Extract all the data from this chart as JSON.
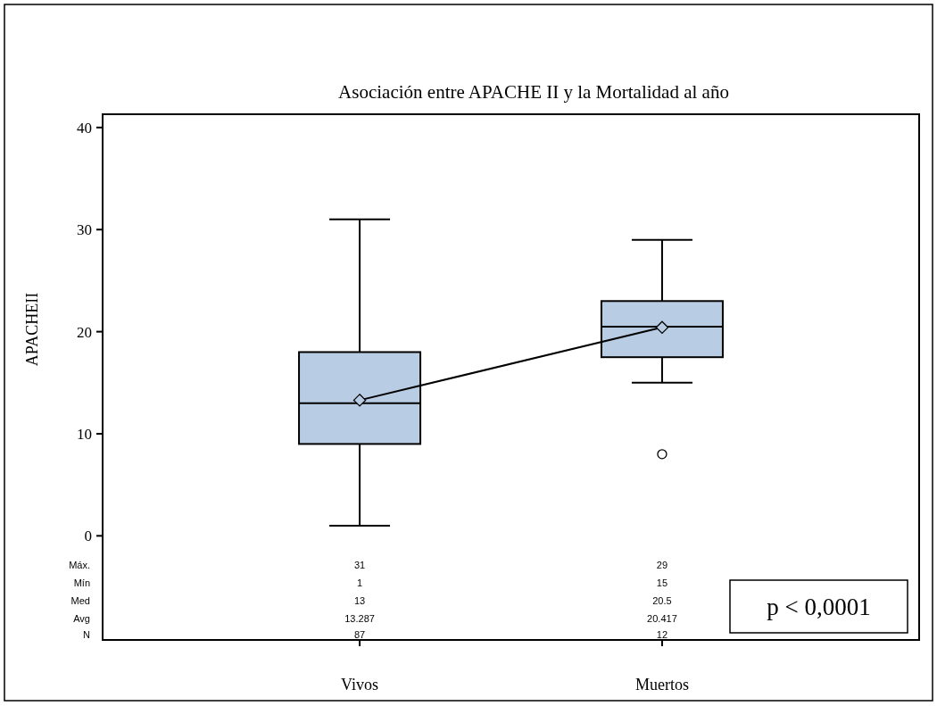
{
  "chart_data": {
    "type": "box",
    "title": "Asociación entre APACHE II y la Mortalidad al año",
    "ylabel": "APACHEII",
    "categories": [
      "Vivos",
      "Muertos"
    ],
    "boxes": [
      {
        "low": 1,
        "q1": 9,
        "median": 13,
        "q3": 18,
        "high": 31
      },
      {
        "low": 15,
        "q1": 17.5,
        "median": 20.5,
        "q3": 23,
        "high": 29,
        "outliers": [
          8
        ]
      }
    ],
    "series": [
      {
        "type": "line",
        "values": [
          13.287,
          20.417
        ],
        "color": "#000000",
        "marker": "diamond"
      }
    ],
    "color": "#b8cce4",
    "ylim": [
      -10.2,
      41.3
    ],
    "yticks": [
      0,
      10,
      20,
      30,
      40
    ],
    "grid": false,
    "annotations": [
      "Máx.",
      "31",
      "29",
      "Mín",
      "1",
      "15",
      "Med",
      "13",
      "20.5",
      "Avg",
      "13.287",
      "20.417",
      "N",
      "87",
      "12",
      "p < 0,0001"
    ]
  }
}
